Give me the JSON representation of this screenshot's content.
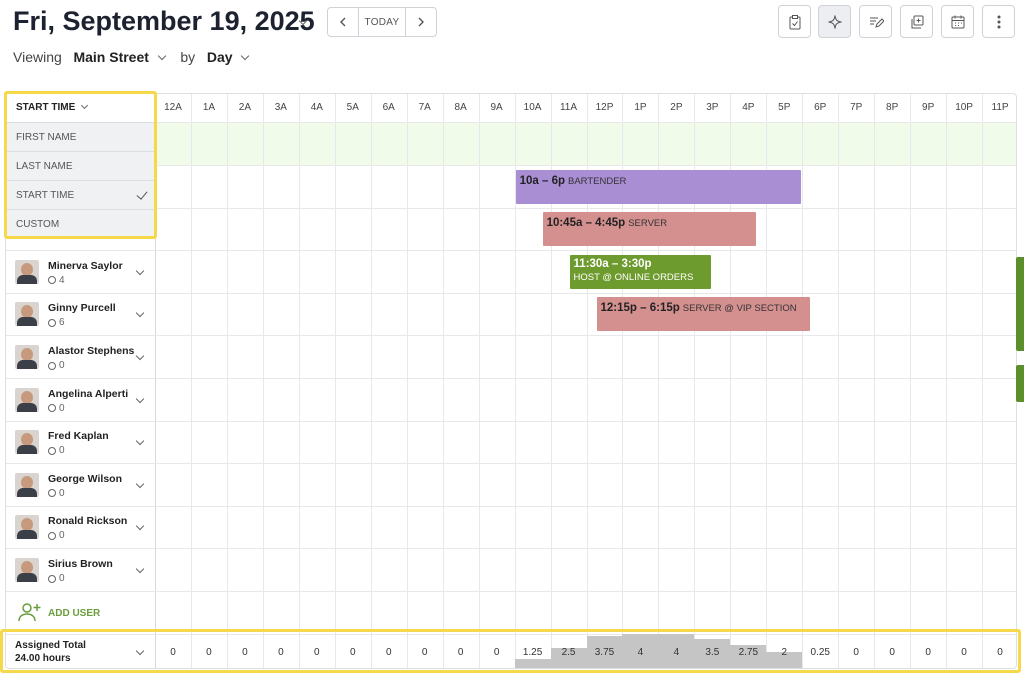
{
  "header": {
    "title": "Fri, September 19, 2025",
    "today_label": "TODAY",
    "viewing_label": "Viewing",
    "location": "Main Street",
    "by_label": "by",
    "period": "Day"
  },
  "toolbar_icons": [
    "clipboard-check-icon",
    "sparkle-icon",
    "edit-list-icon",
    "copy-icon",
    "calendar-icon",
    "more-vertical-icon"
  ],
  "hours": [
    "12A",
    "1A",
    "2A",
    "3A",
    "4A",
    "5A",
    "6A",
    "7A",
    "8A",
    "9A",
    "10A",
    "11A",
    "12P",
    "1P",
    "2P",
    "3P",
    "4P",
    "5P",
    "6P",
    "7P",
    "8P",
    "9P",
    "10P",
    "11P"
  ],
  "sort_menu": {
    "header": "START TIME",
    "items": [
      "FIRST NAME",
      "LAST NAME",
      "START TIME",
      "CUSTOM"
    ],
    "selected": "START TIME"
  },
  "employees": [
    {
      "name": "Minerva Saylor",
      "hours": "4"
    },
    {
      "name": "Ginny Purcell",
      "hours": "6"
    },
    {
      "name": "Alastor Stephens",
      "hours": "0"
    },
    {
      "name": "Angelina Alperti",
      "hours": "0"
    },
    {
      "name": "Fred Kaplan",
      "hours": "0"
    },
    {
      "name": "George Wilson",
      "hours": "0"
    },
    {
      "name": "Ronald Rickson",
      "hours": "0"
    },
    {
      "name": "Sirius Brown",
      "hours": "0"
    }
  ],
  "add_user_label": "ADD USER",
  "shifts": [
    {
      "time": "10a – 6p",
      "role": "BARTENDER",
      "start": 10,
      "end": 18,
      "row": 1,
      "color": "#a98ed4",
      "text": "#222",
      "two_line": false
    },
    {
      "time": "10:45a – 4:45p",
      "role": "SERVER",
      "start": 10.75,
      "end": 16.75,
      "row": 2,
      "color": "#d48f8f",
      "text": "#222",
      "two_line": false
    },
    {
      "time": "11:30a – 3:30p",
      "role": "HOST @ ONLINE ORDERS",
      "start": 11.5,
      "end": 15.5,
      "row": 3,
      "color": "#6e9b2e",
      "text": "#fff",
      "two_line": true
    },
    {
      "time": "12:15p – 6:15p",
      "role": "SERVER @ VIP SECTION",
      "start": 12.25,
      "end": 18.25,
      "row": 4,
      "color": "#d48f8f",
      "text": "#222",
      "two_line": false
    }
  ],
  "totals": {
    "label": "Assigned Total",
    "hours": "24.00 hours",
    "values": [
      "0",
      "0",
      "0",
      "0",
      "0",
      "0",
      "0",
      "0",
      "0",
      "0",
      "1.25",
      "2.5",
      "3.75",
      "4",
      "4",
      "3.5",
      "2.75",
      "2",
      "0.25",
      "0",
      "0",
      "0",
      "0",
      "0"
    ]
  }
}
